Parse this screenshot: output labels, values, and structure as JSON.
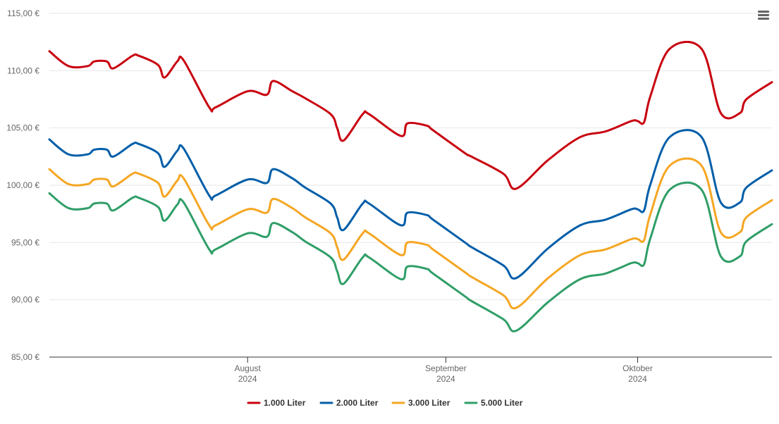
{
  "menu": {
    "icon": "hamburger-menu-icon"
  },
  "chart_data": {
    "type": "line",
    "title": "",
    "xlabel": "",
    "ylabel": "",
    "ylim": [
      85,
      115
    ],
    "y_ticks": [
      "85,00 €",
      "90,00 €",
      "95,00 €",
      "100,00 €",
      "105,00 €",
      "110,00 €",
      "115,00 €"
    ],
    "y_tick_values": [
      85,
      90,
      95,
      100,
      105,
      110,
      115
    ],
    "x_range": [
      "2024-07-01",
      "2024-10-22"
    ],
    "x_ticks": [
      {
        "date": "2024-08-01",
        "month": "August",
        "year": "2024"
      },
      {
        "date": "2024-09-01",
        "month": "September",
        "year": "2024"
      },
      {
        "date": "2024-10-01",
        "month": "Oktober",
        "year": "2024"
      }
    ],
    "grid": true,
    "legend_position": "bottom-center",
    "dates": [
      "2024-07-01",
      "2024-07-04",
      "2024-07-07",
      "2024-07-08",
      "2024-07-10",
      "2024-07-11",
      "2024-07-14",
      "2024-07-15",
      "2024-07-18",
      "2024-07-19",
      "2024-07-21",
      "2024-07-22",
      "2024-07-26",
      "2024-07-27",
      "2024-08-01",
      "2024-08-04",
      "2024-08-05",
      "2024-08-08",
      "2024-08-10",
      "2024-08-14",
      "2024-08-15",
      "2024-08-16",
      "2024-08-19",
      "2024-08-20",
      "2024-08-25",
      "2024-08-26",
      "2024-08-29",
      "2024-08-30",
      "2024-09-04",
      "2024-09-05",
      "2024-09-10",
      "2024-09-12",
      "2024-09-17",
      "2024-09-22",
      "2024-09-26",
      "2024-09-30",
      "2024-10-01",
      "2024-10-02",
      "2024-10-03",
      "2024-10-06",
      "2024-10-11",
      "2024-10-14",
      "2024-10-17",
      "2024-10-18",
      "2024-10-22"
    ],
    "series": [
      {
        "name": "1.000 Liter",
        "color": "#c8000f",
        "values": [
          111.7,
          110.4,
          110.4,
          110.8,
          110.8,
          110.2,
          111.3,
          111.3,
          110.5,
          109.4,
          110.8,
          110.9,
          106.8,
          106.8,
          108.2,
          107.9,
          109.1,
          108.2,
          107.6,
          106.2,
          105.0,
          103.9,
          106.2,
          106.2,
          104.3,
          105.4,
          105.2,
          104.8,
          102.8,
          102.5,
          101.0,
          99.7,
          102.2,
          104.2,
          104.7,
          105.6,
          105.6,
          105.5,
          107.8,
          111.9,
          111.9,
          106.3,
          106.3,
          107.5,
          109.0
        ]
      },
      {
        "name": "2.000 Liter",
        "color": "#005ea8",
        "values": [
          104.0,
          102.7,
          102.7,
          103.1,
          103.1,
          102.5,
          103.6,
          103.6,
          102.8,
          101.6,
          103.0,
          103.2,
          99.1,
          99.1,
          100.5,
          100.2,
          101.4,
          100.6,
          99.8,
          98.4,
          97.2,
          96.1,
          98.4,
          98.4,
          96.5,
          97.6,
          97.4,
          97.0,
          95.0,
          94.6,
          93.0,
          91.9,
          94.5,
          96.5,
          97.0,
          97.9,
          97.9,
          97.8,
          100.1,
          104.2,
          104.2,
          98.5,
          98.5,
          99.8,
          101.3
        ]
      },
      {
        "name": "3.000 Liter",
        "color": "#f5a623",
        "values": [
          101.4,
          100.1,
          100.1,
          100.5,
          100.5,
          99.9,
          101.0,
          101.0,
          100.2,
          99.0,
          100.4,
          100.6,
          96.5,
          96.5,
          97.9,
          97.6,
          98.8,
          98.0,
          97.2,
          95.8,
          94.6,
          93.5,
          95.8,
          95.8,
          93.9,
          95.0,
          94.8,
          94.4,
          92.4,
          92.0,
          90.4,
          89.3,
          91.9,
          93.9,
          94.4,
          95.3,
          95.3,
          95.2,
          97.5,
          101.7,
          101.7,
          95.9,
          95.9,
          97.2,
          98.7
        ]
      },
      {
        "name": "5.000 Liter",
        "color": "#2f9e67",
        "values": [
          99.3,
          98.0,
          98.0,
          98.4,
          98.4,
          97.8,
          98.9,
          98.9,
          98.1,
          96.9,
          98.3,
          98.5,
          94.4,
          94.4,
          95.8,
          95.5,
          96.7,
          95.9,
          95.1,
          93.7,
          92.5,
          91.4,
          93.7,
          93.7,
          91.8,
          92.9,
          92.7,
          92.3,
          90.3,
          89.9,
          88.3,
          87.3,
          89.8,
          91.8,
          92.3,
          93.2,
          93.2,
          93.1,
          95.4,
          99.6,
          99.6,
          93.8,
          93.8,
          95.1,
          96.6
        ]
      }
    ]
  }
}
